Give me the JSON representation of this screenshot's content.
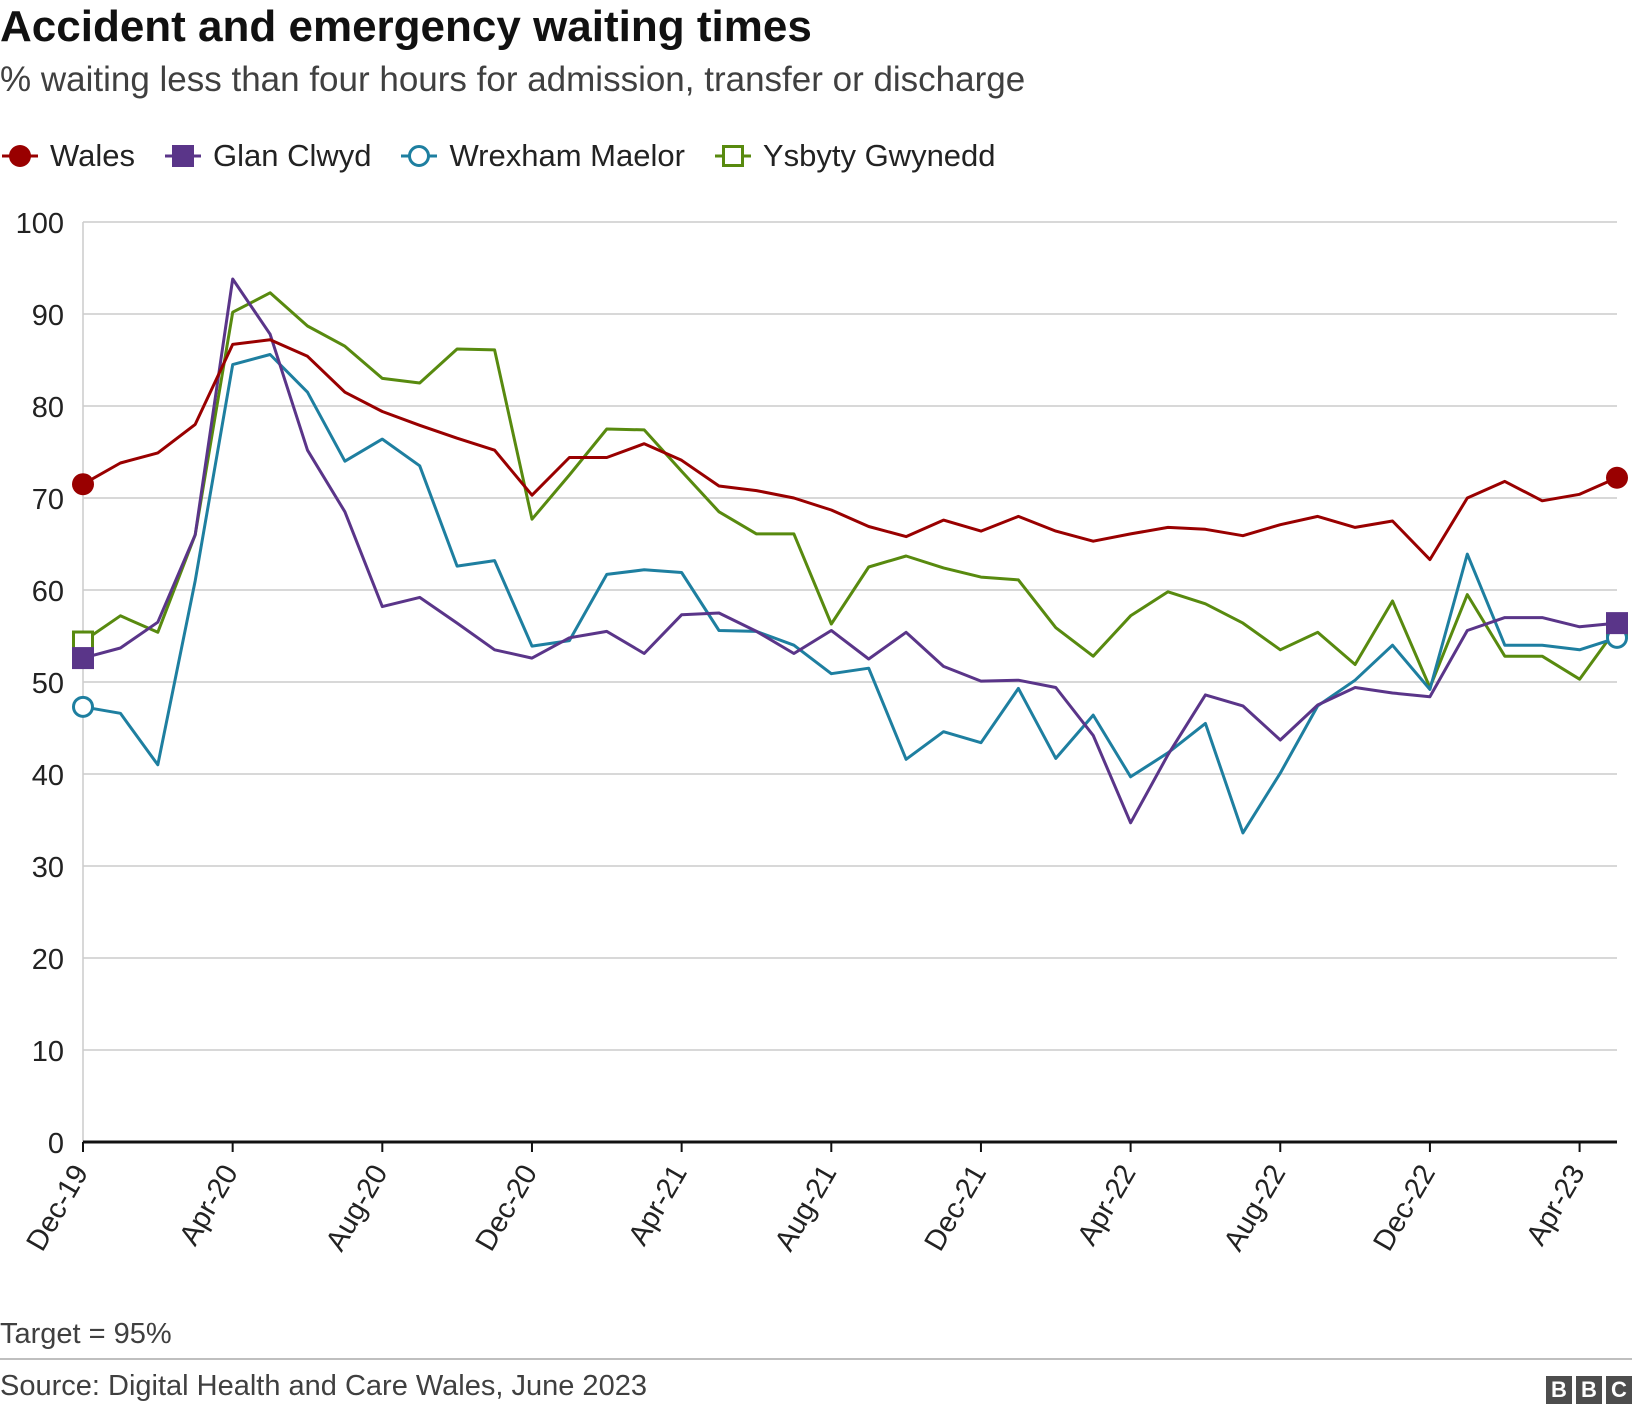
{
  "chart_data": {
    "type": "line",
    "title": "Accident and emergency waiting times",
    "subtitle": "% waiting less than four hours for admission, transfer or discharge",
    "xlabel": "",
    "ylabel": "",
    "ylim": [
      0,
      100
    ],
    "yticks": [
      0,
      10,
      20,
      30,
      40,
      50,
      60,
      70,
      80,
      90,
      100
    ],
    "grid": true,
    "legend_position": "top-left",
    "x_tick_labels": [
      {
        "index": 0,
        "label": "Dec-19"
      },
      {
        "index": 4,
        "label": "Apr-20"
      },
      {
        "index": 8,
        "label": "Aug-20"
      },
      {
        "index": 12,
        "label": "Dec-20"
      },
      {
        "index": 16,
        "label": "Apr-21"
      },
      {
        "index": 20,
        "label": "Aug-21"
      },
      {
        "index": 24,
        "label": "Dec-21"
      },
      {
        "index": 28,
        "label": "Apr-22"
      },
      {
        "index": 32,
        "label": "Aug-22"
      },
      {
        "index": 36,
        "label": "Dec-22"
      },
      {
        "index": 40,
        "label": "Apr-23"
      }
    ],
    "x": [
      "Dec-19",
      "Jan-20",
      "Feb-20",
      "Mar-20",
      "Apr-20",
      "May-20",
      "Jun-20",
      "Jul-20",
      "Aug-20",
      "Sep-20",
      "Oct-20",
      "Nov-20",
      "Dec-20",
      "Jan-21",
      "Feb-21",
      "Mar-21",
      "Apr-21",
      "May-21",
      "Jun-21",
      "Jul-21",
      "Aug-21",
      "Sep-21",
      "Oct-21",
      "Nov-21",
      "Dec-21",
      "Jan-22",
      "Feb-22",
      "Mar-22",
      "Apr-22",
      "May-22",
      "Jun-22",
      "Jul-22",
      "Aug-22",
      "Sep-22",
      "Oct-22",
      "Nov-22",
      "Dec-22",
      "Jan-23",
      "Feb-23",
      "Mar-23",
      "Apr-23",
      "May-23"
    ],
    "series": [
      {
        "name": "Wales",
        "color": "#990000",
        "marker": "circle-filled",
        "values": [
          71.5,
          73.8,
          74.9,
          78.0,
          86.7,
          87.2,
          85.4,
          81.5,
          79.4,
          77.9,
          76.5,
          75.2,
          70.3,
          74.4,
          74.4,
          75.9,
          74.1,
          71.3,
          70.8,
          70.0,
          68.7,
          66.9,
          65.8,
          67.6,
          66.4,
          68.0,
          66.4,
          65.3,
          66.1,
          66.8,
          66.6,
          65.9,
          67.1,
          68.0,
          66.8,
          67.5,
          63.3,
          70.0,
          71.8,
          69.7,
          70.4,
          72.2
        ]
      },
      {
        "name": "Glan Clwyd",
        "color": "#5a3589",
        "marker": "square-filled",
        "values": [
          52.6,
          53.7,
          56.5,
          66.0,
          93.8,
          87.8,
          75.2,
          68.5,
          58.2,
          59.2,
          56.4,
          53.5,
          52.6,
          54.8,
          55.5,
          53.1,
          57.3,
          57.5,
          55.5,
          53.1,
          55.6,
          52.5,
          55.4,
          51.7,
          50.1,
          50.2,
          49.4,
          44.2,
          34.7,
          42.1,
          48.6,
          47.4,
          43.7,
          47.5,
          49.4,
          48.8,
          48.4,
          55.6,
          57.0,
          57.0,
          56.0,
          56.4
        ]
      },
      {
        "name": "Wrexham Maelor",
        "color": "#1e7fa0",
        "marker": "circle-open",
        "values": [
          47.3,
          46.6,
          41.0,
          61.0,
          84.5,
          85.6,
          81.5,
          74.0,
          76.4,
          73.5,
          62.6,
          63.2,
          53.9,
          54.5,
          61.7,
          62.2,
          61.9,
          55.6,
          55.5,
          54.0,
          50.9,
          51.5,
          41.6,
          44.6,
          43.4,
          49.3,
          41.7,
          46.4,
          39.7,
          42.3,
          45.5,
          33.6,
          40.1,
          47.4,
          50.2,
          54.0,
          49.2,
          63.9,
          54.0,
          54.0,
          53.5,
          54.8
        ]
      },
      {
        "name": "Ysbyty Gwynedd",
        "color": "#588a0f",
        "marker": "square-open",
        "values": [
          54.4,
          57.2,
          55.4,
          66.0,
          90.2,
          92.3,
          88.7,
          86.5,
          83.0,
          82.5,
          86.2,
          86.1,
          67.7,
          72.5,
          77.5,
          77.4,
          72.9,
          68.5,
          66.1,
          66.1,
          56.3,
          62.5,
          63.7,
          62.4,
          61.4,
          61.1,
          55.9,
          52.8,
          57.2,
          59.8,
          58.5,
          56.4,
          53.5,
          55.4,
          51.9,
          58.8,
          49.4,
          59.5,
          52.8,
          52.8,
          50.3,
          55.9
        ]
      }
    ]
  },
  "note": "Target = 95%",
  "source": "Source: Digital Health and Care Wales, June 2023",
  "logo": "BBC"
}
